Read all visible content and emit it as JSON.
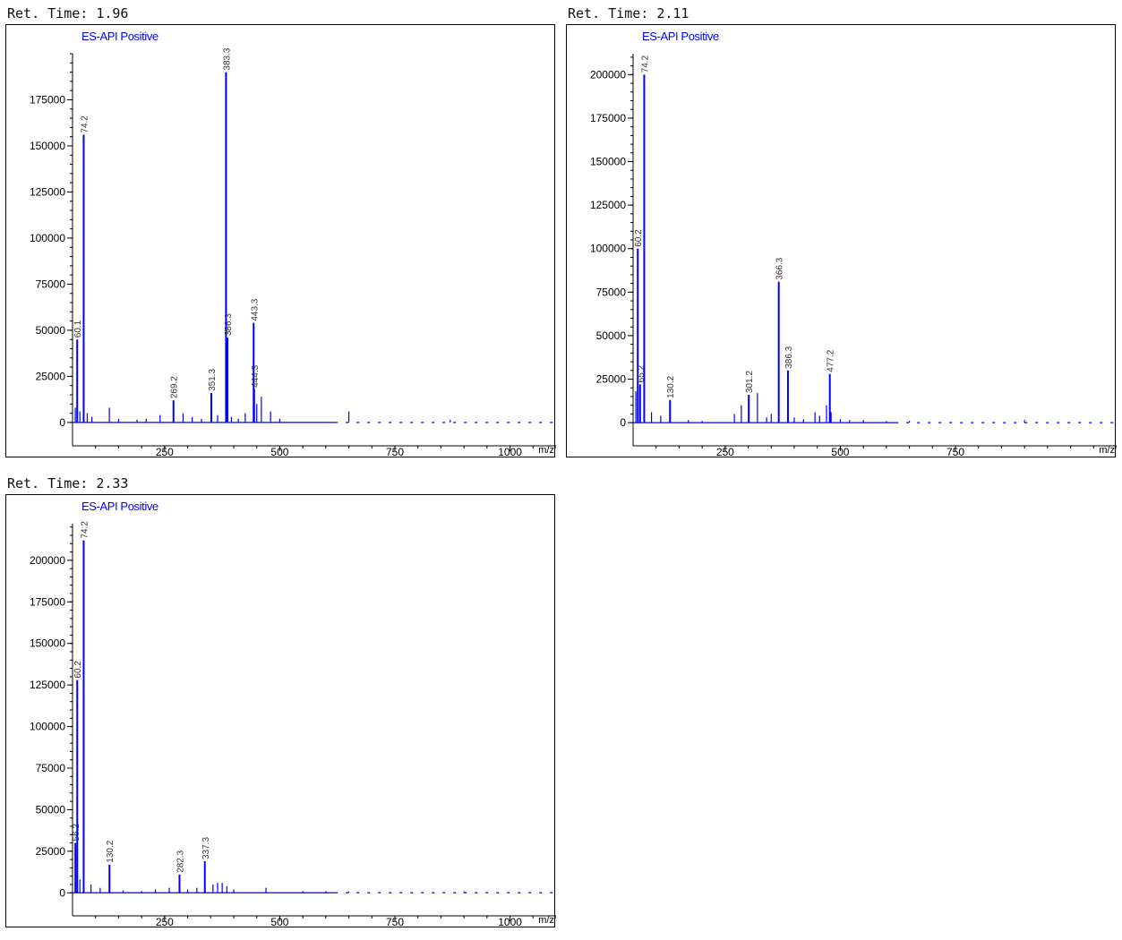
{
  "chart_data": [
    {
      "type": "bar",
      "title": "Ret. Time: 1.96",
      "subtitle": "ES-API Positive",
      "xlabel": "m/z",
      "ylabel": "",
      "xlim": [
        50,
        1100
      ],
      "ylim": [
        -2000,
        200000
      ],
      "xticks": [
        "250",
        "500",
        "750",
        "1000"
      ],
      "yticks": [
        "0",
        "25000",
        "50000",
        "75000",
        "100000",
        "125000",
        "150000",
        "175000"
      ],
      "peaks": [
        {
          "x": 60.1,
          "y": 45000,
          "label": "60.1"
        },
        {
          "x": 74.2,
          "y": 156000,
          "label": "74.2"
        },
        {
          "x": 269.2,
          "y": 12000,
          "label": "269.2"
        },
        {
          "x": 351.3,
          "y": 16000,
          "label": "351.3"
        },
        {
          "x": 383.3,
          "y": 190000,
          "label": "383.3"
        },
        {
          "x": 386.3,
          "y": 46000,
          "label": "386.3"
        },
        {
          "x": 443.3,
          "y": 54000,
          "label": "443.3"
        },
        {
          "x": 444.3,
          "y": 18000,
          "label": "444.3"
        }
      ],
      "minor_peaks": [
        [
          56,
          8000
        ],
        [
          66,
          6000
        ],
        [
          82,
          5000
        ],
        [
          92,
          3000
        ],
        [
          130,
          8000
        ],
        [
          150,
          2000
        ],
        [
          190,
          1500
        ],
        [
          210,
          2000
        ],
        [
          240,
          4000
        ],
        [
          290,
          5000
        ],
        [
          310,
          3000
        ],
        [
          330,
          2000
        ],
        [
          365,
          4000
        ],
        [
          395,
          3000
        ],
        [
          410,
          2000
        ],
        [
          425,
          5000
        ],
        [
          450,
          10000
        ],
        [
          460,
          14000
        ],
        [
          480,
          6000
        ],
        [
          500,
          2000
        ],
        [
          650,
          6000
        ],
        [
          870,
          1500
        ]
      ]
    },
    {
      "type": "bar",
      "title": "Ret. Time: 2.11",
      "subtitle": "ES-API Positive",
      "xlabel": "m/z",
      "ylabel": "",
      "xlim": [
        50,
        1100
      ],
      "ylim": [
        -2000,
        212000
      ],
      "xticks": [
        "250",
        "500",
        "750"
      ],
      "yticks": [
        "0",
        "25000",
        "50000",
        "75000",
        "100000",
        "125000",
        "150000",
        "175000",
        "200000"
      ],
      "peaks": [
        {
          "x": 60.2,
          "y": 100000,
          "label": "60.2"
        },
        {
          "x": 65.2,
          "y": 22000,
          "label": "65.2"
        },
        {
          "x": 74.2,
          "y": 200000,
          "label": "74.2"
        },
        {
          "x": 130.2,
          "y": 13000,
          "label": "130.2"
        },
        {
          "x": 301.2,
          "y": 16000,
          "label": "301.2"
        },
        {
          "x": 366.3,
          "y": 81000,
          "label": "366.3"
        },
        {
          "x": 386.3,
          "y": 30000,
          "label": "386.3"
        },
        {
          "x": 477.2,
          "y": 28000,
          "label": "477.2"
        }
      ],
      "minor_peaks": [
        [
          56,
          18000
        ],
        [
          90,
          6000
        ],
        [
          110,
          4000
        ],
        [
          170,
          1500
        ],
        [
          200,
          1000
        ],
        [
          270,
          5000
        ],
        [
          285,
          10000
        ],
        [
          320,
          17000
        ],
        [
          340,
          3000
        ],
        [
          350,
          5000
        ],
        [
          400,
          3000
        ],
        [
          420,
          2000
        ],
        [
          445,
          6000
        ],
        [
          455,
          4000
        ],
        [
          470,
          10000
        ],
        [
          480,
          6000
        ],
        [
          500,
          2000
        ],
        [
          520,
          1500
        ],
        [
          550,
          1500
        ],
        [
          600,
          1000
        ],
        [
          650,
          1000
        ],
        [
          900,
          1500
        ]
      ]
    },
    {
      "type": "bar",
      "title": "Ret. Time: 2.33",
      "subtitle": "ES-API Positive",
      "xlabel": "m/z",
      "ylabel": "",
      "xlim": [
        50,
        1100
      ],
      "ylim": [
        -2000,
        222000
      ],
      "xticks": [
        "250",
        "500",
        "750",
        "1000"
      ],
      "yticks": [
        "0",
        "25000",
        "50000",
        "75000",
        "100000",
        "125000",
        "150000",
        "175000",
        "200000"
      ],
      "peaks": [
        {
          "x": 56.2,
          "y": 30000,
          "label": "56.2"
        },
        {
          "x": 60.2,
          "y": 128000,
          "label": "60.2"
        },
        {
          "x": 74.2,
          "y": 212000,
          "label": "74.2"
        },
        {
          "x": 130.2,
          "y": 17000,
          "label": "130.2"
        },
        {
          "x": 282.3,
          "y": 11000,
          "label": "282.3"
        },
        {
          "x": 337.3,
          "y": 19000,
          "label": "337.3"
        }
      ],
      "minor_peaks": [
        [
          66,
          8000
        ],
        [
          90,
          5000
        ],
        [
          110,
          3000
        ],
        [
          160,
          1500
        ],
        [
          200,
          1000
        ],
        [
          230,
          2000
        ],
        [
          260,
          3000
        ],
        [
          300,
          2000
        ],
        [
          320,
          3000
        ],
        [
          355,
          5000
        ],
        [
          365,
          6000
        ],
        [
          375,
          6000
        ],
        [
          385,
          4000
        ],
        [
          400,
          2000
        ],
        [
          470,
          3000
        ],
        [
          550,
          1000
        ],
        [
          600,
          1000
        ],
        [
          650,
          800
        ],
        [
          900,
          800
        ]
      ]
    }
  ]
}
